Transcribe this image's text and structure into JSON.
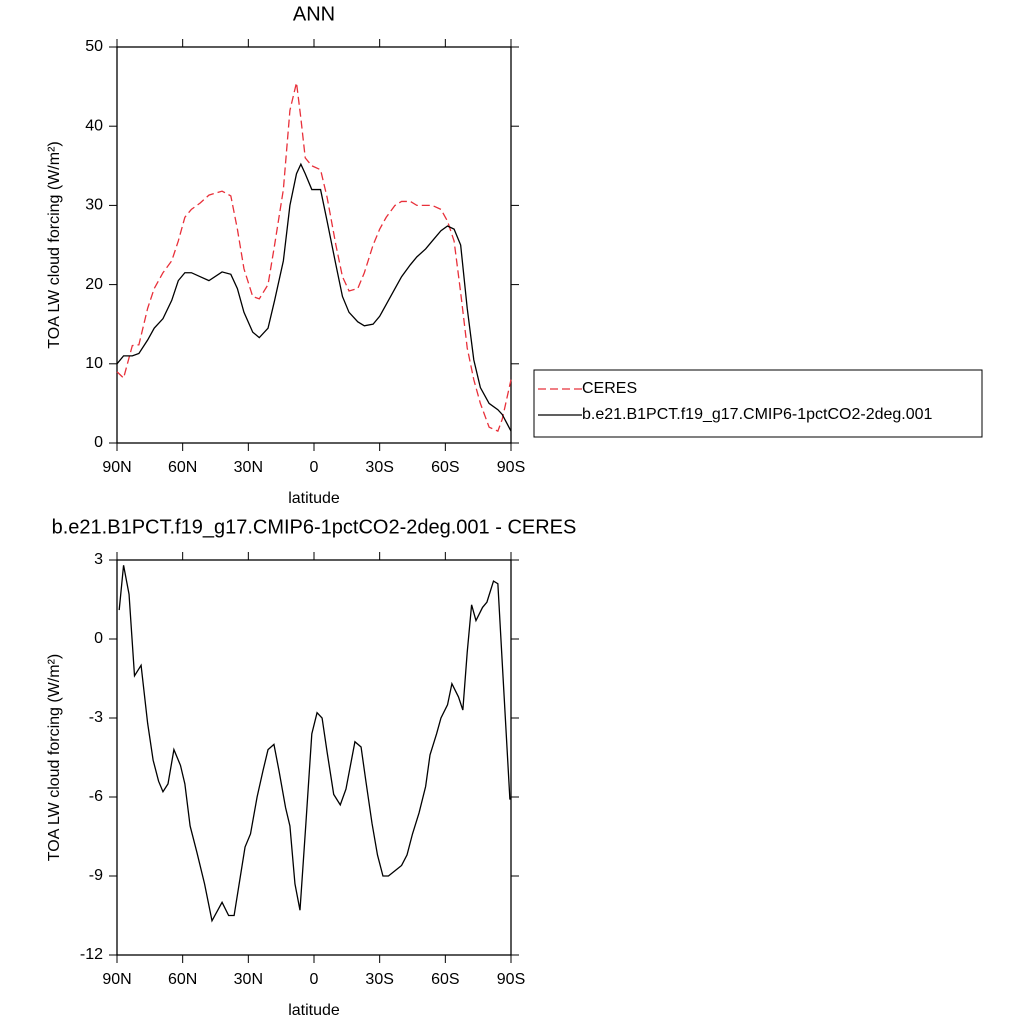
{
  "chart_data": [
    {
      "type": "line",
      "title": "ANN",
      "xlabel": "latitude",
      "ylabel": "TOA LW cloud forcing (W/m²)",
      "x": [
        90,
        87,
        83,
        80,
        76,
        73,
        69,
        65,
        62,
        59,
        56,
        52,
        48,
        42,
        38,
        35,
        32,
        28,
        25,
        21,
        18,
        14,
        11,
        8,
        6,
        4,
        1,
        -3,
        -6,
        -10,
        -13,
        -16,
        -20,
        -23,
        -27,
        -30,
        -33,
        -37,
        -40,
        -44,
        -47,
        -51,
        -54,
        -58,
        -61,
        -64,
        -67,
        -70,
        -73,
        -76,
        -80,
        -84,
        -86,
        -90
      ],
      "series": [
        {
          "name": "CERES",
          "color": "#e8303a",
          "style": "dashed",
          "values": [
            9,
            8.2,
            12.3,
            12.4,
            17,
            19.5,
            21.5,
            23,
            25.5,
            28.5,
            29.5,
            30.3,
            31.3,
            31.8,
            31.2,
            27,
            22,
            18.5,
            18.2,
            20,
            25,
            32,
            42,
            45.5,
            41,
            36,
            35,
            34.5,
            31,
            25,
            21,
            19.2,
            19.5,
            21.5,
            25,
            27,
            28.5,
            30,
            30.5,
            30.5,
            30,
            30,
            30,
            29.5,
            28,
            25.5,
            19,
            12,
            8,
            5,
            2,
            1.5,
            3,
            8
          ]
        },
        {
          "name": "b.e21.B1PCT.f19_g17.CMIP6-1pctCO2-2deg.001",
          "color": "#000000",
          "style": "solid",
          "values": [
            10,
            11,
            11,
            11.3,
            13,
            14.5,
            15.7,
            18,
            20.5,
            21.5,
            21.5,
            21,
            20.5,
            21.6,
            21.3,
            19.5,
            16.5,
            14,
            13.3,
            14.5,
            18,
            23,
            30,
            34,
            35.2,
            34,
            32,
            32,
            28,
            22.5,
            18.5,
            16.5,
            15.3,
            14.8,
            15,
            16,
            17.5,
            19.5,
            21,
            22.5,
            23.5,
            24.5,
            25.5,
            26.8,
            27.4,
            27,
            25,
            17,
            10.5,
            7,
            5,
            4.2,
            3.6,
            1.5
          ]
        }
      ],
      "xlim": [
        90,
        -90
      ],
      "xticks": [
        {
          "value": 90,
          "label": "90N"
        },
        {
          "value": 60,
          "label": "60N"
        },
        {
          "value": 30,
          "label": "30N"
        },
        0,
        {
          "value": -30,
          "label": "30S"
        },
        {
          "value": -60,
          "label": "60S"
        },
        {
          "value": -90,
          "label": "90S"
        }
      ],
      "ylim": [
        0,
        50
      ],
      "yticks": [
        0,
        10,
        20,
        30,
        40,
        50
      ],
      "legend": "right"
    },
    {
      "type": "line",
      "title": "b.e21.B1PCT.f19_g17.CMIP6-1pctCO2-2deg.001 - CERES",
      "xlabel": "latitude",
      "ylabel": "TOA LW cloud forcing (W/m²)",
      "x": [
        89,
        87,
        84.5,
        82,
        79,
        76,
        73.5,
        71,
        69,
        66.7,
        64,
        61,
        59,
        56.6,
        53.5,
        50,
        46.6,
        42,
        39,
        36.5,
        34,
        31.5,
        29,
        26,
        23.3,
        21,
        18.3,
        16,
        13,
        11,
        8.7,
        6.4,
        3.7,
        1,
        -1.4,
        -3.7,
        -6,
        -9,
        -12,
        -14.6,
        -18.7,
        -21.5,
        -23.7,
        -26.5,
        -29,
        -31.5,
        -34,
        -37,
        -40,
        -42.5,
        -45,
        -48,
        -51,
        -53,
        -56,
        -58,
        -61,
        -63,
        -66,
        -68,
        -70,
        -72,
        -74,
        -77,
        -79,
        -82,
        -84,
        -86,
        -89.5
      ],
      "series": [
        {
          "color": "#000000",
          "style": "solid",
          "values": [
            1.1,
            2.8,
            1.7,
            -1.4,
            -1,
            -3.2,
            -4.6,
            -5.4,
            -5.8,
            -5.5,
            -4.2,
            -4.8,
            -5.5,
            -7.1,
            -8.1,
            -9.3,
            -10.7,
            -10,
            -10.5,
            -10.5,
            -9.2,
            -7.9,
            -7.4,
            -6,
            -5,
            -4.2,
            -4,
            -5,
            -6.4,
            -7.1,
            -9.3,
            -10.3,
            -7,
            -3.6,
            -2.8,
            -3,
            -4.3,
            -5.9,
            -6.3,
            -5.7,
            -3.9,
            -4.1,
            -5.4,
            -7,
            -8.2,
            -9,
            -9,
            -8.8,
            -8.6,
            -8.2,
            -7.4,
            -6.6,
            -5.6,
            -4.4,
            -3.6,
            -3,
            -2.5,
            -1.7,
            -2.2,
            -2.7,
            -0.5,
            1.3,
            0.7,
            1.2,
            1.4,
            2.2,
            2.1,
            -0.9,
            -6.1
          ]
        }
      ],
      "xlim": [
        90,
        -90
      ],
      "xticks": [
        {
          "value": 90,
          "label": "90N"
        },
        {
          "value": 60,
          "label": "60N"
        },
        {
          "value": 30,
          "label": "30N"
        },
        0,
        {
          "value": -30,
          "label": "30S"
        },
        {
          "value": -60,
          "label": "60S"
        },
        {
          "value": -90,
          "label": "90S"
        }
      ],
      "ylim": [
        -12,
        3
      ],
      "yticks": [
        -12,
        -9,
        -6,
        -3,
        0,
        3
      ]
    }
  ]
}
